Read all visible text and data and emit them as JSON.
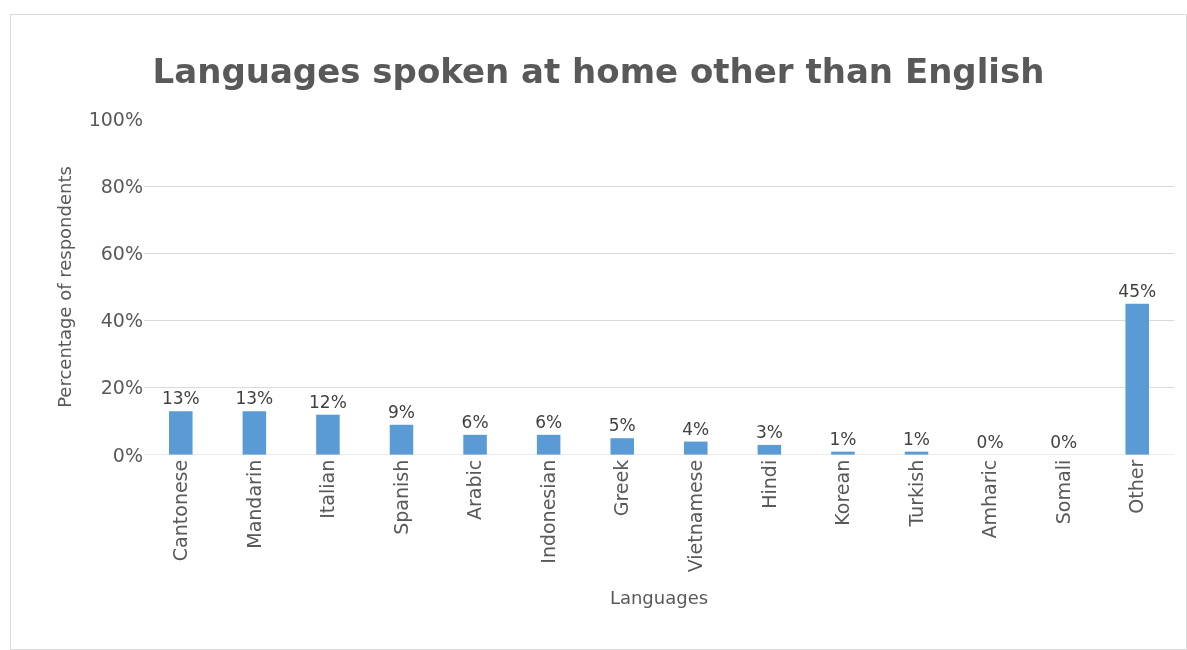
{
  "chart_data": {
    "type": "bar",
    "title": "Languages spoken at home other than English",
    "xlabel": "Languages",
    "ylabel": "Percentage of respondents",
    "categories": [
      "Cantonese",
      "Mandarin",
      "Italian",
      "Spanish",
      "Arabic",
      "Indonesian",
      "Greek",
      "Vietnamese",
      "Hindi",
      "Korean",
      "Turkish",
      "Amharic",
      "Somali",
      "Other"
    ],
    "values": [
      13,
      13,
      12,
      9,
      6,
      6,
      5,
      4,
      3,
      1,
      1,
      0,
      0,
      45
    ],
    "value_labels": [
      "13%",
      "13%",
      "12%",
      "9%",
      "6%",
      "6%",
      "5%",
      "4%",
      "3%",
      "1%",
      "1%",
      "0%",
      "0%",
      "45%"
    ],
    "color": "#5b9bd5",
    "ylim": [
      0,
      100
    ],
    "yticks": [
      {
        "value": 0,
        "label": "0%"
      },
      {
        "value": 20,
        "label": "20%"
      },
      {
        "value": 40,
        "label": "40%"
      },
      {
        "value": 60,
        "label": "60%"
      },
      {
        "value": 80,
        "label": "80%"
      },
      {
        "value": 100,
        "label": "100%"
      }
    ],
    "grid": "y",
    "legend": false
  }
}
